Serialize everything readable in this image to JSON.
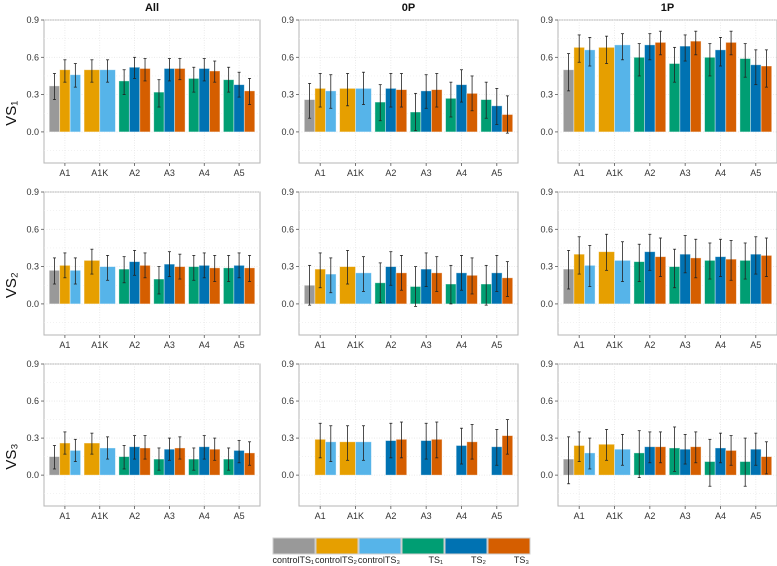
{
  "chart_data": {
    "type": "bar",
    "column_titles": [
      "All",
      "0P",
      "1P"
    ],
    "row_labels": [
      "VS₁",
      "VS₂",
      "VS₃"
    ],
    "categories": [
      "A1",
      "A1K",
      "A2",
      "A3",
      "A4",
      "A5"
    ],
    "y_ticks": [
      "0.0",
      "0.3",
      "0.6",
      "0.9"
    ],
    "y_tick_values": [
      0.0,
      0.3,
      0.6,
      0.9
    ],
    "ylim": [
      -0.25,
      0.9
    ],
    "grid": true,
    "legend_position": "bottom",
    "series": [
      {
        "name": "controlTS₁",
        "color": "#999999"
      },
      {
        "name": "controlTS₂",
        "color": "#E69F00"
      },
      {
        "name": "controlTS₃",
        "color": "#56B4E9"
      },
      {
        "name": "TS₁",
        "color": "#009E73"
      },
      {
        "name": "TS₂",
        "color": "#0072B2"
      },
      {
        "name": "TS₃",
        "color": "#D55E00"
      }
    ],
    "bar_format": "[series_index, value, error_low, error_high]",
    "panels": [
      {
        "row": "VS1",
        "column": "All",
        "groups": [
          [
            [
              0,
              0.37,
              0.26,
              0.47
            ],
            [
              1,
              0.5,
              0.4,
              0.58
            ],
            [
              2,
              0.46,
              0.36,
              0.55
            ]
          ],
          [
            [
              1,
              0.5,
              0.4,
              0.58
            ],
            [
              2,
              0.5,
              0.4,
              0.58
            ]
          ],
          [
            [
              3,
              0.41,
              0.3,
              0.5
            ],
            [
              4,
              0.52,
              0.43,
              0.6
            ],
            [
              5,
              0.51,
              0.41,
              0.59
            ]
          ],
          [
            [
              3,
              0.32,
              0.2,
              0.42
            ],
            [
              4,
              0.51,
              0.41,
              0.59
            ],
            [
              5,
              0.51,
              0.42,
              0.59
            ]
          ],
          [
            [
              3,
              0.43,
              0.32,
              0.52
            ],
            [
              4,
              0.51,
              0.41,
              0.59
            ],
            [
              5,
              0.49,
              0.4,
              0.57
            ]
          ],
          [
            [
              3,
              0.42,
              0.32,
              0.52
            ],
            [
              4,
              0.38,
              0.28,
              0.48
            ],
            [
              5,
              0.33,
              0.22,
              0.43
            ]
          ]
        ]
      },
      {
        "row": "VS1",
        "column": "0P",
        "groups": [
          [
            [
              0,
              0.26,
              0.11,
              0.39
            ],
            [
              1,
              0.35,
              0.2,
              0.47
            ],
            [
              2,
              0.33,
              0.19,
              0.46
            ]
          ],
          [
            [
              1,
              0.35,
              0.21,
              0.47
            ],
            [
              2,
              0.35,
              0.22,
              0.48
            ]
          ],
          [
            [
              3,
              0.24,
              0.09,
              0.38
            ],
            [
              4,
              0.35,
              0.2,
              0.47
            ],
            [
              5,
              0.34,
              0.2,
              0.47
            ]
          ],
          [
            [
              3,
              0.16,
              0.01,
              0.31
            ],
            [
              4,
              0.33,
              0.19,
              0.46
            ],
            [
              5,
              0.34,
              0.2,
              0.47
            ]
          ],
          [
            [
              3,
              0.27,
              0.12,
              0.4
            ],
            [
              4,
              0.38,
              0.24,
              0.5
            ],
            [
              5,
              0.31,
              0.17,
              0.45
            ]
          ],
          [
            [
              3,
              0.26,
              0.11,
              0.4
            ],
            [
              4,
              0.21,
              0.06,
              0.35
            ],
            [
              5,
              0.14,
              -0.01,
              0.29
            ]
          ]
        ]
      },
      {
        "row": "VS1",
        "column": "1P",
        "groups": [
          [
            [
              0,
              0.5,
              0.33,
              0.63
            ],
            [
              1,
              0.68,
              0.56,
              0.78
            ],
            [
              2,
              0.66,
              0.53,
              0.76
            ]
          ],
          [
            [
              1,
              0.68,
              0.55,
              0.77
            ],
            [
              2,
              0.7,
              0.58,
              0.79
            ]
          ],
          [
            [
              3,
              0.6,
              0.45,
              0.71
            ],
            [
              4,
              0.7,
              0.58,
              0.79
            ],
            [
              5,
              0.72,
              0.62,
              0.81
            ]
          ],
          [
            [
              3,
              0.55,
              0.4,
              0.68
            ],
            [
              4,
              0.69,
              0.57,
              0.78
            ],
            [
              5,
              0.73,
              0.62,
              0.81
            ]
          ],
          [
            [
              3,
              0.6,
              0.45,
              0.71
            ],
            [
              4,
              0.66,
              0.53,
              0.76
            ],
            [
              5,
              0.72,
              0.62,
              0.81
            ]
          ],
          [
            [
              3,
              0.59,
              0.44,
              0.71
            ],
            [
              4,
              0.54,
              0.38,
              0.66
            ],
            [
              5,
              0.53,
              0.36,
              0.66
            ]
          ]
        ]
      },
      {
        "row": "VS2",
        "column": "All",
        "groups": [
          [
            [
              0,
              0.27,
              0.16,
              0.37
            ],
            [
              1,
              0.31,
              0.21,
              0.41
            ],
            [
              2,
              0.27,
              0.16,
              0.37
            ]
          ],
          [
            [
              1,
              0.35,
              0.24,
              0.44
            ],
            [
              2,
              0.3,
              0.19,
              0.39
            ]
          ],
          [
            [
              3,
              0.28,
              0.17,
              0.38
            ],
            [
              4,
              0.34,
              0.23,
              0.43
            ],
            [
              5,
              0.31,
              0.21,
              0.41
            ]
          ],
          [
            [
              3,
              0.2,
              0.08,
              0.3
            ],
            [
              4,
              0.32,
              0.22,
              0.42
            ],
            [
              5,
              0.3,
              0.2,
              0.4
            ]
          ],
          [
            [
              3,
              0.3,
              0.19,
              0.39
            ],
            [
              4,
              0.31,
              0.21,
              0.41
            ],
            [
              5,
              0.29,
              0.18,
              0.39
            ]
          ],
          [
            [
              3,
              0.29,
              0.18,
              0.39
            ],
            [
              4,
              0.31,
              0.21,
              0.41
            ],
            [
              5,
              0.29,
              0.18,
              0.39
            ]
          ]
        ]
      },
      {
        "row": "VS2",
        "column": "0P",
        "groups": [
          [
            [
              0,
              0.15,
              -0.01,
              0.31
            ],
            [
              1,
              0.28,
              0.13,
              0.41
            ],
            [
              2,
              0.24,
              0.09,
              0.37
            ]
          ],
          [
            [
              1,
              0.3,
              0.16,
              0.43
            ],
            [
              2,
              0.25,
              0.1,
              0.38
            ]
          ],
          [
            [
              3,
              0.17,
              0.01,
              0.33
            ],
            [
              4,
              0.3,
              0.15,
              0.42
            ],
            [
              5,
              0.25,
              0.11,
              0.39
            ]
          ],
          [
            [
              3,
              0.14,
              -0.02,
              0.3
            ],
            [
              4,
              0.28,
              0.14,
              0.41
            ],
            [
              5,
              0.25,
              0.1,
              0.38
            ]
          ],
          [
            [
              3,
              0.16,
              0.0,
              0.31
            ],
            [
              4,
              0.25,
              0.11,
              0.39
            ],
            [
              5,
              0.23,
              0.08,
              0.37
            ]
          ],
          [
            [
              3,
              0.16,
              -0.01,
              0.31
            ],
            [
              4,
              0.25,
              0.1,
              0.39
            ],
            [
              5,
              0.21,
              0.06,
              0.34
            ]
          ]
        ]
      },
      {
        "row": "VS2",
        "column": "1P",
        "groups": [
          [
            [
              0,
              0.28,
              0.12,
              0.43
            ],
            [
              1,
              0.4,
              0.24,
              0.54
            ],
            [
              2,
              0.31,
              0.14,
              0.47
            ]
          ],
          [
            [
              1,
              0.42,
              0.27,
              0.56
            ],
            [
              2,
              0.35,
              0.18,
              0.5
            ]
          ],
          [
            [
              3,
              0.34,
              0.18,
              0.48
            ],
            [
              4,
              0.42,
              0.27,
              0.56
            ],
            [
              5,
              0.38,
              0.22,
              0.53
            ]
          ],
          [
            [
              3,
              0.3,
              0.13,
              0.44
            ],
            [
              4,
              0.4,
              0.25,
              0.55
            ],
            [
              5,
              0.37,
              0.21,
              0.52
            ]
          ],
          [
            [
              3,
              0.35,
              0.2,
              0.49
            ],
            [
              4,
              0.38,
              0.22,
              0.52
            ],
            [
              5,
              0.36,
              0.19,
              0.51
            ]
          ],
          [
            [
              3,
              0.35,
              0.2,
              0.49
            ],
            [
              4,
              0.4,
              0.24,
              0.54
            ],
            [
              5,
              0.39,
              0.22,
              0.53
            ]
          ]
        ]
      },
      {
        "row": "VS3",
        "column": "All",
        "groups": [
          [
            [
              0,
              0.15,
              0.05,
              0.24
            ],
            [
              1,
              0.26,
              0.17,
              0.35
            ],
            [
              2,
              0.2,
              0.11,
              0.29
            ]
          ],
          [
            [
              1,
              0.26,
              0.17,
              0.34
            ],
            [
              2,
              0.22,
              0.13,
              0.31
            ]
          ],
          [
            [
              3,
              0.15,
              0.05,
              0.24
            ],
            [
              4,
              0.23,
              0.13,
              0.32
            ],
            [
              5,
              0.22,
              0.13,
              0.32
            ]
          ],
          [
            [
              3,
              0.13,
              0.04,
              0.22
            ],
            [
              4,
              0.21,
              0.12,
              0.3
            ],
            [
              5,
              0.22,
              0.13,
              0.31
            ]
          ],
          [
            [
              3,
              0.13,
              0.04,
              0.22
            ],
            [
              4,
              0.23,
              0.13,
              0.32
            ],
            [
              5,
              0.21,
              0.12,
              0.3
            ]
          ],
          [
            [
              3,
              0.13,
              0.04,
              0.22
            ],
            [
              4,
              0.2,
              0.1,
              0.28
            ],
            [
              5,
              0.18,
              0.08,
              0.27
            ]
          ]
        ]
      },
      {
        "row": "VS3",
        "column": "0P",
        "groups": [
          [
            [
              0,
              null,
              null,
              null
            ],
            [
              1,
              0.29,
              0.14,
              0.42
            ],
            [
              2,
              0.27,
              0.11,
              0.4
            ]
          ],
          [
            [
              1,
              0.27,
              0.12,
              0.4
            ],
            [
              2,
              0.27,
              0.12,
              0.4
            ]
          ],
          [
            [
              3,
              null,
              null,
              null
            ],
            [
              4,
              0.28,
              0.14,
              0.42
            ],
            [
              5,
              0.29,
              0.14,
              0.43
            ]
          ],
          [
            [
              3,
              null,
              null,
              null
            ],
            [
              4,
              0.28,
              0.13,
              0.42
            ],
            [
              5,
              0.29,
              0.14,
              0.43
            ]
          ],
          [
            [
              3,
              null,
              null,
              null
            ],
            [
              4,
              0.24,
              0.09,
              0.38
            ],
            [
              5,
              0.27,
              0.13,
              0.41
            ]
          ],
          [
            [
              3,
              null,
              null,
              null
            ],
            [
              4,
              0.23,
              0.08,
              0.37
            ],
            [
              5,
              0.32,
              0.17,
              0.45
            ]
          ]
        ]
      },
      {
        "row": "VS3",
        "column": "1P",
        "groups": [
          [
            [
              0,
              0.13,
              -0.07,
              0.31
            ],
            [
              1,
              0.24,
              0.11,
              0.35
            ],
            [
              2,
              0.18,
              0.05,
              0.3
            ]
          ],
          [
            [
              1,
              0.25,
              0.12,
              0.37
            ],
            [
              2,
              0.21,
              0.08,
              0.33
            ]
          ],
          [
            [
              3,
              0.18,
              -0.02,
              0.36
            ],
            [
              4,
              0.23,
              0.1,
              0.35
            ],
            [
              5,
              0.23,
              0.1,
              0.35
            ]
          ],
          [
            [
              3,
              0.22,
              0.03,
              0.39
            ],
            [
              4,
              0.21,
              0.09,
              0.33
            ],
            [
              5,
              0.23,
              0.1,
              0.35
            ]
          ],
          [
            [
              3,
              0.11,
              -0.09,
              0.29
            ],
            [
              4,
              0.22,
              0.1,
              0.34
            ],
            [
              5,
              0.2,
              0.08,
              0.32
            ]
          ],
          [
            [
              3,
              0.11,
              -0.09,
              0.3
            ],
            [
              4,
              0.21,
              0.08,
              0.34
            ],
            [
              5,
              0.15,
              0.01,
              0.27
            ]
          ]
        ]
      }
    ]
  }
}
